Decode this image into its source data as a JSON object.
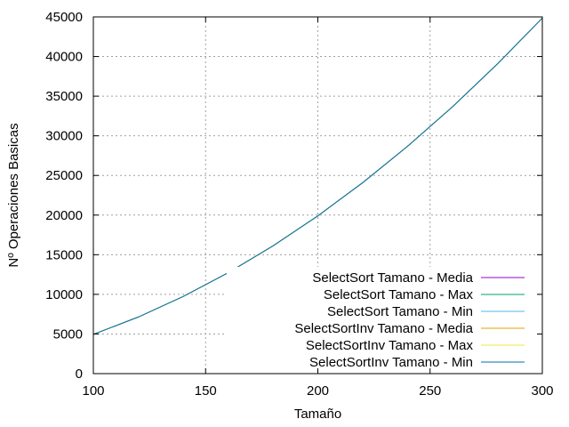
{
  "chart_data": {
    "type": "line",
    "xlabel": "Tamaño",
    "ylabel": "Nº Operaciones Basicas",
    "xlim": [
      100,
      300
    ],
    "ylim": [
      0,
      45000
    ],
    "xticks": [
      100,
      150,
      200,
      250,
      300
    ],
    "yticks": [
      0,
      5000,
      10000,
      15000,
      20000,
      25000,
      30000,
      35000,
      40000,
      45000
    ],
    "grid": true,
    "legend_position": "bottom-right",
    "x": [
      100,
      120,
      140,
      160,
      180,
      200,
      220,
      240,
      260,
      280,
      300
    ],
    "series": [
      {
        "name": "SelectSort Tamano - Media",
        "color": "#9400d3",
        "values": [
          4950,
          7140,
          9730,
          12720,
          16110,
          19900,
          24090,
          28680,
          33670,
          39060,
          44850
        ]
      },
      {
        "name": "SelectSort Tamano - Max",
        "color": "#009e73",
        "values": [
          4950,
          7140,
          9730,
          12720,
          16110,
          19900,
          24090,
          28680,
          33670,
          39060,
          44850
        ]
      },
      {
        "name": "SelectSort Tamano - Min",
        "color": "#56b4e9",
        "values": [
          4950,
          7140,
          9730,
          12720,
          16110,
          19900,
          24090,
          28680,
          33670,
          39060,
          44850
        ]
      },
      {
        "name": "SelectSortInv Tamano - Media",
        "color": "#e69f00",
        "values": [
          4950,
          7140,
          9730,
          12720,
          16110,
          19900,
          24090,
          28680,
          33670,
          39060,
          44850
        ]
      },
      {
        "name": "SelectSortInv Tamano - Max",
        "color": "#f0e442",
        "values": [
          4950,
          7140,
          9730,
          12720,
          16110,
          19900,
          24090,
          28680,
          33670,
          39060,
          44850
        ]
      },
      {
        "name": "SelectSortInv Tamano - Min",
        "color": "#0072b2",
        "values": [
          4950,
          7140,
          9730,
          12720,
          16110,
          19900,
          24090,
          28680,
          33670,
          39060,
          44850
        ]
      }
    ]
  }
}
